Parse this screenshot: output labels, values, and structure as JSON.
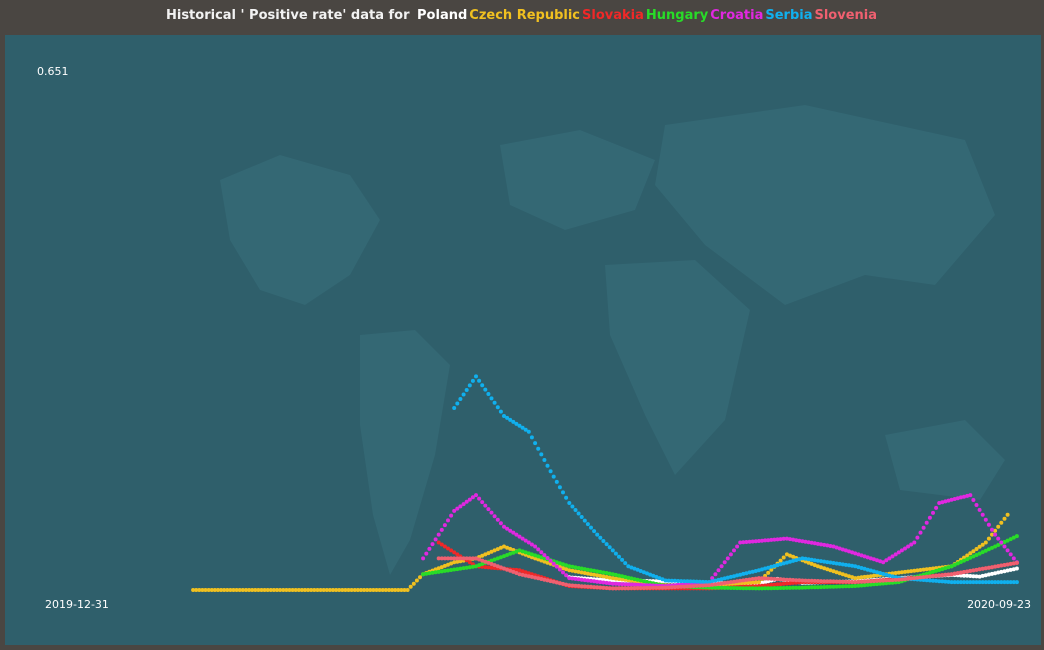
{
  "title": {
    "prefix": "Historical ' Positive rate' data for",
    "countries": [
      {
        "name": "Poland",
        "color": "#ffffff"
      },
      {
        "name": "Czech Republic",
        "color": "#f0c020"
      },
      {
        "name": "Slovakia",
        "color": "#f02828"
      },
      {
        "name": "Hungary",
        "color": "#28dc28"
      },
      {
        "name": "Croatia",
        "color": "#e028e0"
      },
      {
        "name": "Serbia",
        "color": "#10b0ee"
      },
      {
        "name": "Slovenia",
        "color": "#f06070"
      }
    ]
  },
  "background": {
    "map": "world-map",
    "color": "#2f5f6b"
  },
  "chart_data": {
    "type": "scatter",
    "title": "Historical ' Positive rate' data for Poland Czech Republic Slovakia Hungary Croatia Serbia Slovenia",
    "x_axis": {
      "start_label": "2019-12-31",
      "end_label": "2020-09-23",
      "start_date": "2019-12-31",
      "end_date": "2020-09-23"
    },
    "y_axis": {
      "max_label": "0.651",
      "ylim": [
        0,
        0.651
      ]
    },
    "grid": false,
    "legend": "title",
    "series": [
      {
        "name": "Poland",
        "color": "#ffffff",
        "points": [
          [
            "2020-05-01",
            0.016
          ],
          [
            "2020-05-15",
            0.012
          ],
          [
            "2020-06-01",
            0.011
          ],
          [
            "2020-06-15",
            0.009
          ],
          [
            "2020-07-01",
            0.008
          ],
          [
            "2020-07-07",
            0.014
          ],
          [
            "2020-07-15",
            0.009
          ],
          [
            "2020-08-01",
            0.011
          ],
          [
            "2020-08-15",
            0.015
          ],
          [
            "2020-09-01",
            0.019
          ],
          [
            "2020-09-10",
            0.017
          ],
          [
            "2020-09-23",
            0.028
          ]
        ]
      },
      {
        "name": "Czech Republic",
        "color": "#f0c020",
        "points": [
          [
            "2020-01-01",
            0.0
          ],
          [
            "2020-03-10",
            0.0
          ],
          [
            "2020-03-15",
            0.02
          ],
          [
            "2020-03-25",
            0.035
          ],
          [
            "2020-04-01",
            0.04
          ],
          [
            "2020-04-10",
            0.055
          ],
          [
            "2020-04-20",
            0.04
          ],
          [
            "2020-05-01",
            0.025
          ],
          [
            "2020-05-15",
            0.015
          ],
          [
            "2020-06-01",
            0.006
          ],
          [
            "2020-06-15",
            0.005
          ],
          [
            "2020-07-01",
            0.01
          ],
          [
            "2020-07-10",
            0.045
          ],
          [
            "2020-07-20",
            0.03
          ],
          [
            "2020-08-01",
            0.015
          ],
          [
            "2020-08-15",
            0.022
          ],
          [
            "2020-09-01",
            0.03
          ],
          [
            "2020-09-12",
            0.06
          ],
          [
            "2020-09-20",
            0.1
          ]
        ]
      },
      {
        "name": "Slovakia",
        "color": "#f02828",
        "points": [
          [
            "2020-03-20",
            0.06
          ],
          [
            "2020-04-01",
            0.03
          ],
          [
            "2020-04-15",
            0.025
          ],
          [
            "2020-05-01",
            0.005
          ],
          [
            "2020-05-15",
            0.002
          ],
          [
            "2020-06-01",
            0.002
          ],
          [
            "2020-06-15",
            0.002
          ],
          [
            "2020-07-01",
            0.005
          ],
          [
            "2020-07-15",
            0.01
          ],
          [
            "2020-08-01",
            0.01
          ],
          [
            "2020-08-15",
            0.014
          ],
          [
            "2020-09-01",
            0.02
          ],
          [
            "2020-09-23",
            0.035
          ]
        ]
      },
      {
        "name": "Hungary",
        "color": "#28dc28",
        "points": [
          [
            "2020-03-15",
            0.02
          ],
          [
            "2020-04-01",
            0.03
          ],
          [
            "2020-04-15",
            0.05
          ],
          [
            "2020-05-01",
            0.03
          ],
          [
            "2020-05-15",
            0.02
          ],
          [
            "2020-06-01",
            0.005
          ],
          [
            "2020-06-15",
            0.003
          ],
          [
            "2020-07-01",
            0.002
          ],
          [
            "2020-07-15",
            0.003
          ],
          [
            "2020-08-01",
            0.005
          ],
          [
            "2020-08-15",
            0.01
          ],
          [
            "2020-09-01",
            0.03
          ],
          [
            "2020-09-15",
            0.055
          ],
          [
            "2020-09-23",
            0.07
          ]
        ]
      },
      {
        "name": "Croatia",
        "color": "#e028e0",
        "points": [
          [
            "2020-03-15",
            0.04
          ],
          [
            "2020-03-25",
            0.1
          ],
          [
            "2020-04-01",
            0.12
          ],
          [
            "2020-04-10",
            0.08
          ],
          [
            "2020-04-20",
            0.055
          ],
          [
            "2020-05-01",
            0.015
          ],
          [
            "2020-05-15",
            0.008
          ],
          [
            "2020-06-01",
            0.005
          ],
          [
            "2020-06-15",
            0.01
          ],
          [
            "2020-06-25",
            0.06
          ],
          [
            "2020-07-10",
            0.065
          ],
          [
            "2020-07-25",
            0.055
          ],
          [
            "2020-08-10",
            0.035
          ],
          [
            "2020-08-20",
            0.06
          ],
          [
            "2020-08-28",
            0.11
          ],
          [
            "2020-09-07",
            0.12
          ],
          [
            "2020-09-15",
            0.07
          ],
          [
            "2020-09-23",
            0.03
          ]
        ]
      },
      {
        "name": "Serbia",
        "color": "#10b0ee",
        "points": [
          [
            "2020-03-25",
            0.23
          ],
          [
            "2020-04-01",
            0.27
          ],
          [
            "2020-04-10",
            0.22
          ],
          [
            "2020-04-18",
            0.2
          ],
          [
            "2020-04-25",
            0.15
          ],
          [
            "2020-05-01",
            0.11
          ],
          [
            "2020-05-10",
            0.07
          ],
          [
            "2020-05-20",
            0.03
          ],
          [
            "2020-06-01",
            0.012
          ],
          [
            "2020-06-15",
            0.01
          ],
          [
            "2020-07-01",
            0.025
          ],
          [
            "2020-07-15",
            0.04
          ],
          [
            "2020-08-01",
            0.03
          ],
          [
            "2020-08-15",
            0.015
          ],
          [
            "2020-09-01",
            0.01
          ],
          [
            "2020-09-23",
            0.01
          ]
        ]
      },
      {
        "name": "Slovenia",
        "color": "#f06070",
        "points": [
          [
            "2020-03-20",
            0.04
          ],
          [
            "2020-04-01",
            0.04
          ],
          [
            "2020-04-15",
            0.02
          ],
          [
            "2020-05-01",
            0.006
          ],
          [
            "2020-05-15",
            0.002
          ],
          [
            "2020-06-01",
            0.003
          ],
          [
            "2020-06-15",
            0.006
          ],
          [
            "2020-07-01",
            0.015
          ],
          [
            "2020-07-15",
            0.012
          ],
          [
            "2020-08-01",
            0.01
          ],
          [
            "2020-08-15",
            0.013
          ],
          [
            "2020-09-01",
            0.02
          ],
          [
            "2020-09-23",
            0.035
          ]
        ]
      }
    ]
  }
}
